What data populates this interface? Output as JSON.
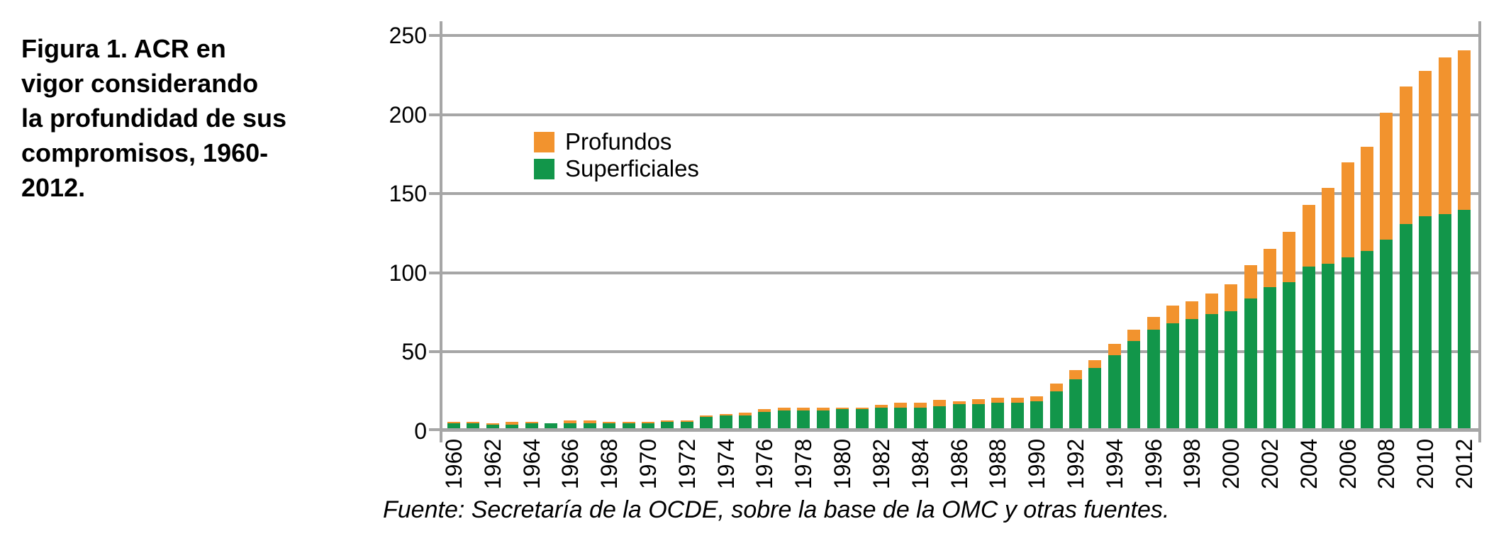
{
  "figure": {
    "title": "Figura 1. ACR en vigor considerando la profundidad de sus compromisos, 1960-2012.",
    "title_lines": [
      "Figura 1. ACR en",
      "vigor considerando",
      "la profundidad de sus",
      "compromisos, 1960-",
      "2012."
    ],
    "source_note": "Fuente: Secretaría de la OCDE, sobre la base de la OMC y otras fuentes."
  },
  "colors": {
    "profundos": "#F2932E",
    "superficiales": "#12964A",
    "grid": "#A6A6A6",
    "text": "#000000",
    "background": "#FFFFFF"
  },
  "chart_data": {
    "type": "bar",
    "stacked": true,
    "grid": "horizontal",
    "legend_position": "upper-left-inside",
    "legend": [
      "Profundos",
      "Superficiales"
    ],
    "stack_order_bottom_to_top": [
      "Superficiales",
      "Profundos"
    ],
    "xlabel": "",
    "ylabel": "",
    "ylim": [
      0,
      250
    ],
    "yticks": [
      0,
      50,
      100,
      150,
      200,
      250
    ],
    "xtick_labels": [
      "1960",
      "1962",
      "1964",
      "1966",
      "1968",
      "1970",
      "1972",
      "1974",
      "1976",
      "1978",
      "1980",
      "1982",
      "1984",
      "1986",
      "1988",
      "1990",
      "1992",
      "1994",
      "1996",
      "1998",
      "2000",
      "2002",
      "2004",
      "2006",
      "2008",
      "2010",
      "2012"
    ],
    "categories": [
      1960,
      1961,
      1962,
      1963,
      1964,
      1965,
      1966,
      1967,
      1968,
      1969,
      1970,
      1971,
      1972,
      1973,
      1974,
      1975,
      1976,
      1977,
      1978,
      1979,
      1980,
      1981,
      1982,
      1983,
      1984,
      1985,
      1986,
      1987,
      1988,
      1989,
      1990,
      1991,
      1992,
      1993,
      1994,
      1995,
      1996,
      1997,
      1998,
      1999,
      2000,
      2001,
      2002,
      2003,
      2004,
      2005,
      2006,
      2007,
      2008,
      2009,
      2010,
      2011,
      2012
    ],
    "series": [
      {
        "name": "Profundos",
        "color": "#F2932E",
        "values": [
          1,
          1,
          1,
          2,
          1,
          0,
          2,
          2,
          1,
          1,
          1,
          1,
          1,
          1,
          1,
          2,
          2,
          2,
          2,
          2,
          1,
          1,
          2,
          3,
          3,
          4,
          2,
          3,
          3,
          3,
          3,
          5,
          6,
          5,
          7,
          7,
          8,
          11,
          11,
          13,
          17,
          21,
          24,
          32,
          39,
          48,
          60,
          66,
          80,
          87,
          92,
          99,
          101
        ]
      },
      {
        "name": "Superficiales",
        "color": "#12964A",
        "values": [
          4,
          4,
          3,
          3,
          4,
          4,
          4,
          4,
          4,
          4,
          4,
          5,
          5,
          8,
          9,
          9,
          11,
          12,
          12,
          12,
          13,
          13,
          14,
          14,
          14,
          15,
          16,
          16,
          17,
          17,
          18,
          24,
          32,
          39,
          47,
          56,
          63,
          67,
          70,
          73,
          75,
          83,
          90,
          93,
          103,
          105,
          109,
          113,
          120,
          130,
          135,
          136,
          139
        ]
      }
    ]
  }
}
